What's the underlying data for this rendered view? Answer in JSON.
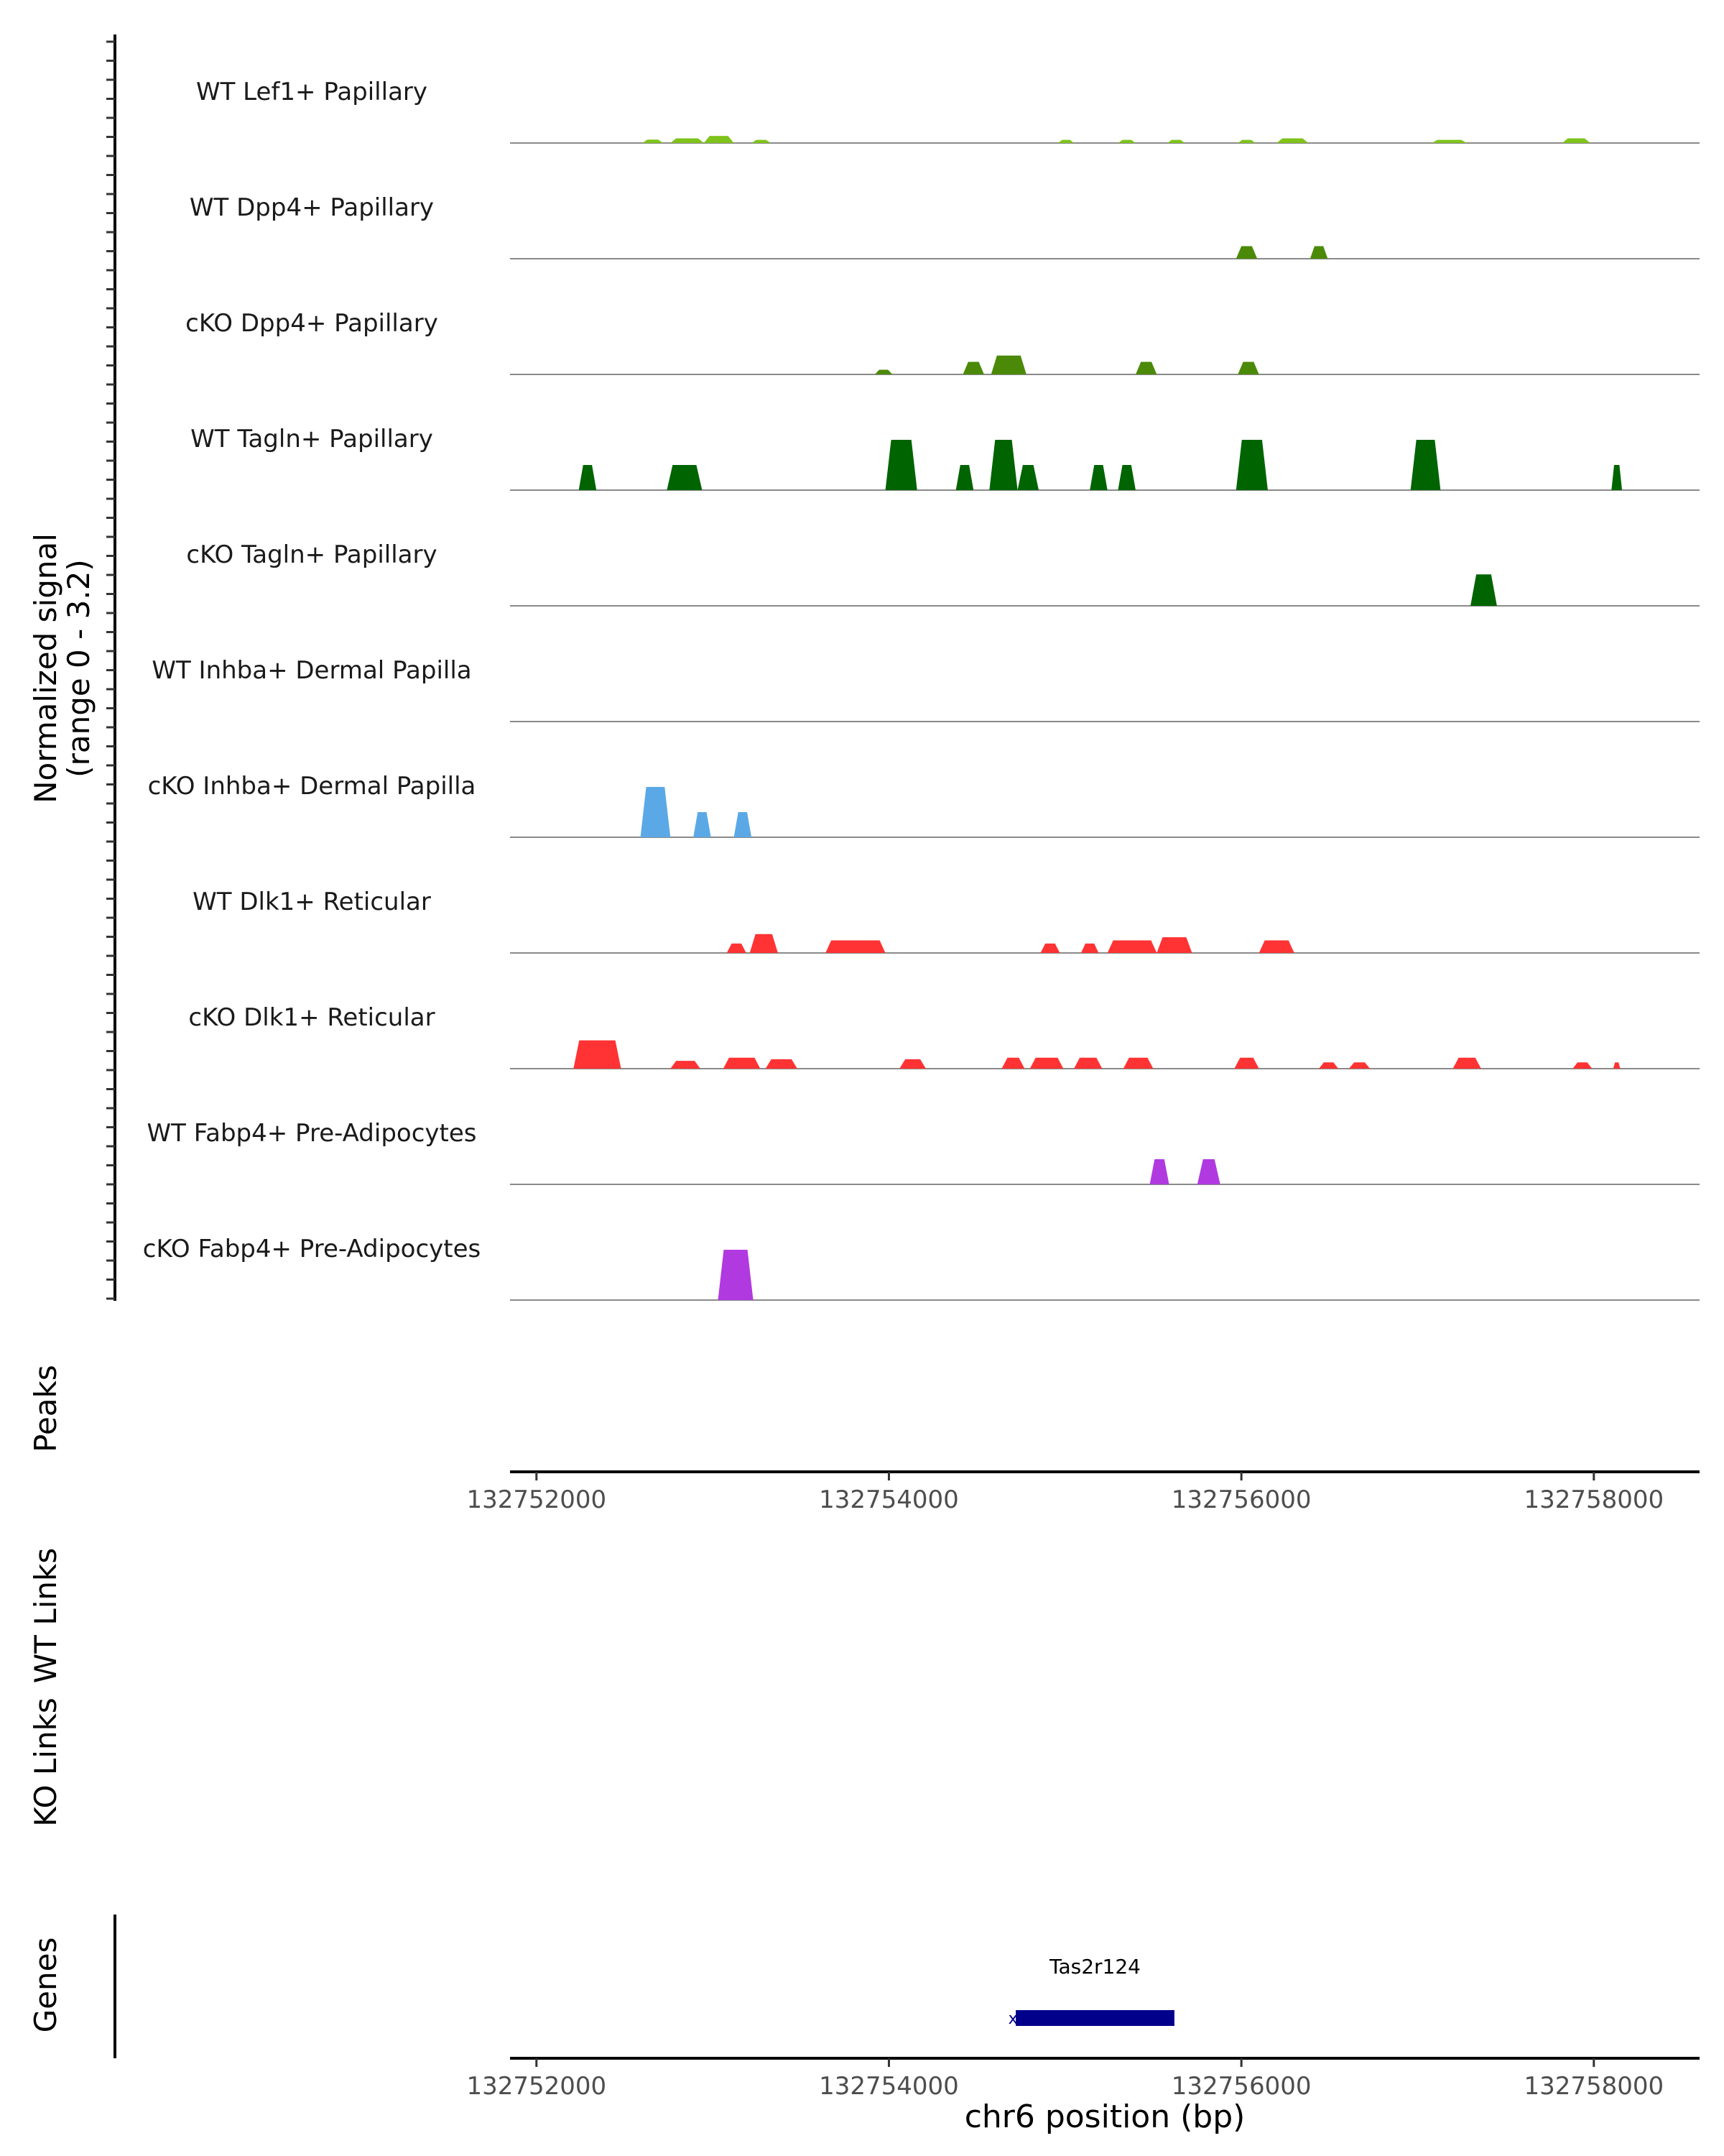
{
  "chart_data": {
    "type": "area",
    "title": "",
    "chromosome": "chr6",
    "xlabel": "chr6 position (bp)",
    "xlim": [
      132751850,
      132758600
    ],
    "x_ticks": [
      132752000,
      132754000,
      132756000,
      132758000
    ],
    "x_tick_labels": [
      "132752000",
      "132754000",
      "132756000",
      "132758000"
    ],
    "ylabel_line1": "Normalized signal",
    "ylabel_line2": "(range 0 - 3.2)",
    "y_range": [
      0,
      3.2
    ],
    "panel_labels": {
      "peaks": "Peaks",
      "wt_links": "WT Links",
      "ko_links": "KO Links",
      "genes": "Genes"
    },
    "tracks": [
      {
        "name": "WT Lef1+ Papillary",
        "color": "#7fc31c",
        "peaks": [
          {
            "s": 132752600,
            "e": 132752720,
            "h": 0.22
          },
          {
            "s": 132752760,
            "e": 132752950,
            "h": 0.3
          },
          {
            "s": 132752950,
            "e": 132753120,
            "h": 0.45
          },
          {
            "s": 132753220,
            "e": 132753330,
            "h": 0.2
          },
          {
            "s": 132754960,
            "e": 132755050,
            "h": 0.2
          },
          {
            "s": 132755300,
            "e": 132755400,
            "h": 0.2
          },
          {
            "s": 132755580,
            "e": 132755680,
            "h": 0.2
          },
          {
            "s": 132755980,
            "e": 132756080,
            "h": 0.2
          },
          {
            "s": 132756200,
            "e": 132756380,
            "h": 0.3
          },
          {
            "s": 132757080,
            "e": 132757280,
            "h": 0.2
          },
          {
            "s": 132757820,
            "e": 132757980,
            "h": 0.3
          }
        ]
      },
      {
        "name": "WT Dpp4+ Papillary",
        "color": "#4b8a08",
        "peaks": [
          {
            "s": 132755970,
            "e": 132756090,
            "h": 0.8
          },
          {
            "s": 132756390,
            "e": 132756490,
            "h": 0.8
          }
        ]
      },
      {
        "name": "cKO Dpp4+ Papillary",
        "color": "#4b8a08",
        "peaks": [
          {
            "s": 132753920,
            "e": 132754020,
            "h": 0.3
          },
          {
            "s": 132754420,
            "e": 132754540,
            "h": 0.8
          },
          {
            "s": 132754580,
            "e": 132754780,
            "h": 1.2
          },
          {
            "s": 132755400,
            "e": 132755520,
            "h": 0.8
          },
          {
            "s": 132755980,
            "e": 132756100,
            "h": 0.8
          }
        ]
      },
      {
        "name": "WT Tagln+ Papillary",
        "color": "#006400",
        "peaks": [
          {
            "s": 132752240,
            "e": 132752340,
            "h": 1.6
          },
          {
            "s": 132752740,
            "e": 132752940,
            "h": 1.6
          },
          {
            "s": 132753980,
            "e": 132754160,
            "h": 3.2
          },
          {
            "s": 132754380,
            "e": 132754480,
            "h": 1.6
          },
          {
            "s": 132754570,
            "e": 132754730,
            "h": 3.2
          },
          {
            "s": 132754730,
            "e": 132754850,
            "h": 1.6
          },
          {
            "s": 132755140,
            "e": 132755240,
            "h": 1.6
          },
          {
            "s": 132755300,
            "e": 132755400,
            "h": 1.6
          },
          {
            "s": 132755970,
            "e": 132756150,
            "h": 3.2
          },
          {
            "s": 132756960,
            "e": 132757130,
            "h": 3.2
          },
          {
            "s": 132758100,
            "e": 132758160,
            "h": 1.6
          }
        ]
      },
      {
        "name": "cKO Tagln+ Papillary",
        "color": "#006400",
        "peaks": [
          {
            "s": 132757300,
            "e": 132757450,
            "h": 2.0
          }
        ]
      },
      {
        "name": "WT Inhba+ Dermal Papilla",
        "color": "#5aa9e6",
        "peaks": []
      },
      {
        "name": "cKO Inhba+ Dermal Papilla",
        "color": "#5aa9e6",
        "peaks": [
          {
            "s": 132752590,
            "e": 132752760,
            "h": 3.2
          },
          {
            "s": 132752890,
            "e": 132752990,
            "h": 1.6
          },
          {
            "s": 132753120,
            "e": 132753220,
            "h": 1.6
          }
        ]
      },
      {
        "name": "WT Dlk1+ Reticular",
        "color": "#ff3333",
        "peaks": [
          {
            "s": 132753080,
            "e": 132753190,
            "h": 0.6
          },
          {
            "s": 132753210,
            "e": 132753370,
            "h": 1.2
          },
          {
            "s": 132753640,
            "e": 132753980,
            "h": 0.8
          },
          {
            "s": 132754860,
            "e": 132754970,
            "h": 0.6
          },
          {
            "s": 132755090,
            "e": 132755190,
            "h": 0.6
          },
          {
            "s": 132755240,
            "e": 132755520,
            "h": 0.8
          },
          {
            "s": 132755520,
            "e": 132755720,
            "h": 1.0
          },
          {
            "s": 132756100,
            "e": 132756300,
            "h": 0.8
          }
        ]
      },
      {
        "name": "cKO Dlk1+ Reticular",
        "color": "#ff3333",
        "peaks": [
          {
            "s": 132752210,
            "e": 132752480,
            "h": 1.8
          },
          {
            "s": 132752760,
            "e": 132752930,
            "h": 0.5
          },
          {
            "s": 132753060,
            "e": 132753270,
            "h": 0.7
          },
          {
            "s": 132753300,
            "e": 132753480,
            "h": 0.6
          },
          {
            "s": 132754060,
            "e": 132754210,
            "h": 0.6
          },
          {
            "s": 132754640,
            "e": 132754770,
            "h": 0.7
          },
          {
            "s": 132754800,
            "e": 132754990,
            "h": 0.7
          },
          {
            "s": 132755050,
            "e": 132755210,
            "h": 0.7
          },
          {
            "s": 132755330,
            "e": 132755500,
            "h": 0.7
          },
          {
            "s": 132755960,
            "e": 132756100,
            "h": 0.7
          },
          {
            "s": 132756440,
            "e": 132756550,
            "h": 0.4
          },
          {
            "s": 132756610,
            "e": 132756730,
            "h": 0.4
          },
          {
            "s": 132757200,
            "e": 132757360,
            "h": 0.7
          },
          {
            "s": 132757880,
            "e": 132757990,
            "h": 0.4
          },
          {
            "s": 132758110,
            "e": 132758150,
            "h": 0.4
          }
        ]
      },
      {
        "name": "WT Fabp4+ Pre-Adipocytes",
        "color": "#b03ae0",
        "peaks": [
          {
            "s": 132755480,
            "e": 132755590,
            "h": 1.6
          },
          {
            "s": 132755750,
            "e": 132755880,
            "h": 1.6
          }
        ]
      },
      {
        "name": "cKO Fabp4+ Pre-Adipocytes",
        "color": "#b03ae0",
        "peaks": [
          {
            "s": 132753030,
            "e": 132753230,
            "h": 3.2
          }
        ]
      }
    ],
    "gene": {
      "name": "Tas2r124",
      "start": 132754720,
      "end": 132755620,
      "color": "#00008b",
      "strand_glyph": "x"
    }
  }
}
